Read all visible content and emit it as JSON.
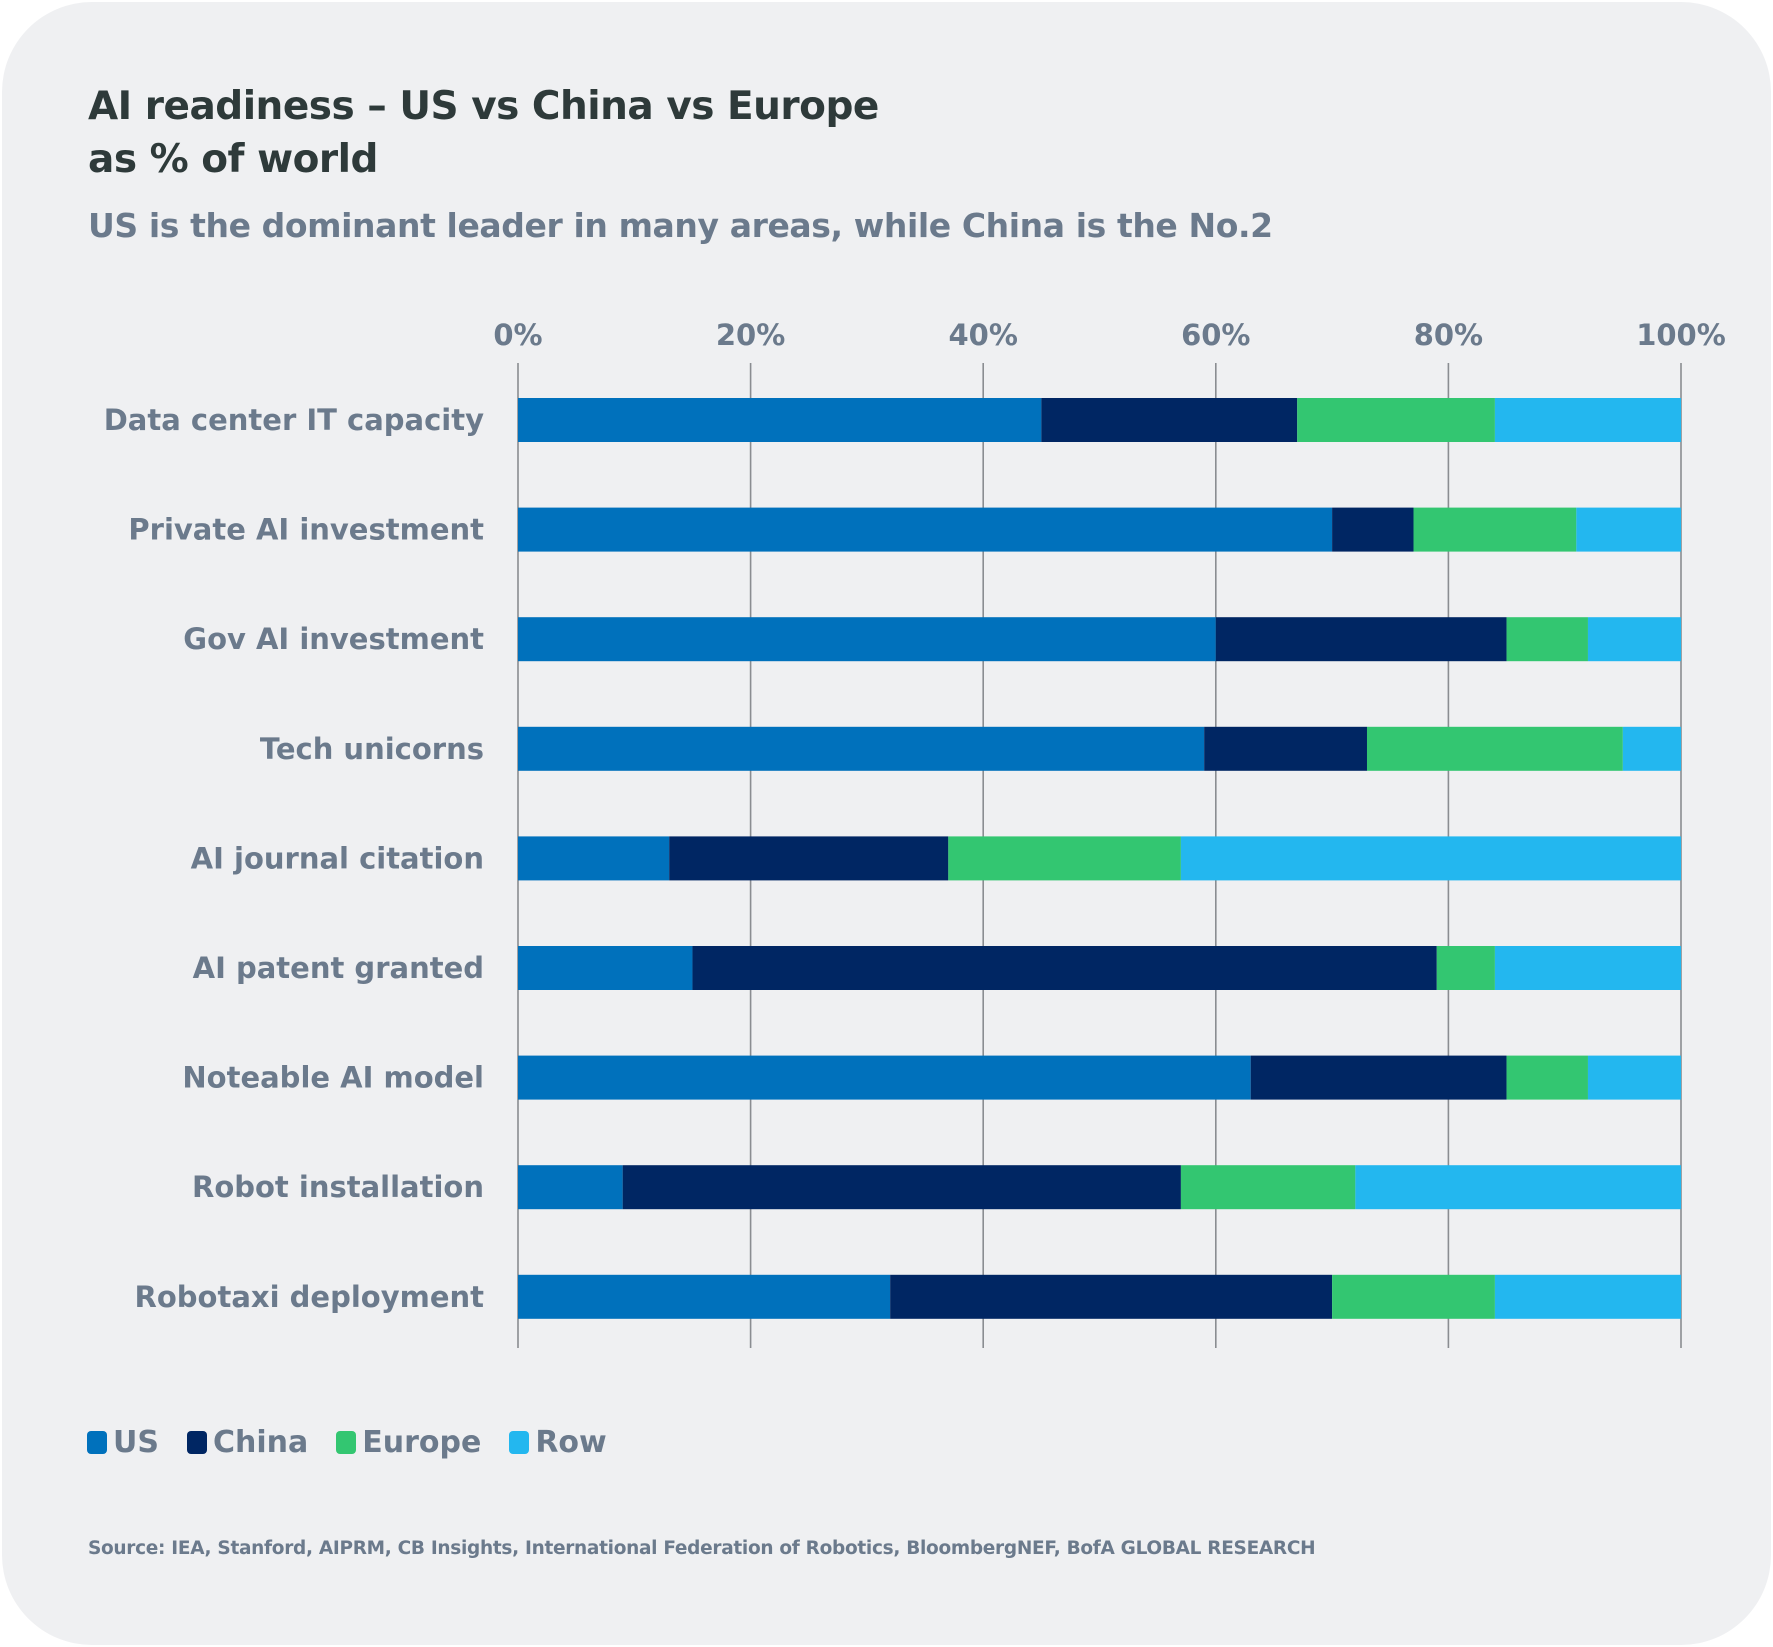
{
  "header": {
    "title_line1": "AI readiness – US vs China vs Europe",
    "title_line2": "as % of world",
    "subtitle": "US is the dominant leader in many areas, while China is the No.2"
  },
  "legend": [
    {
      "name": "US",
      "color": "#0071bc"
    },
    {
      "name": "China",
      "color": "#002663"
    },
    {
      "name": "Europe",
      "color": "#33c671"
    },
    {
      "name": "Row",
      "color": "#23b7ef"
    }
  ],
  "source": "Source: IEA, Stanford, AIPRM, CB Insights, International Federation of Robotics, BloombergNEF, BofA GLOBAL RESEARCH",
  "chart_data": {
    "type": "bar",
    "orientation": "horizontal",
    "stacked": true,
    "title": "AI readiness – US vs China vs Europe as % of world",
    "subtitle": "US is the dominant leader in many areas, while China is the No.2",
    "xlabel": "",
    "ylabel": "",
    "xlim": [
      0,
      100
    ],
    "x_ticks": [
      "0%",
      "20%",
      "40%",
      "60%",
      "80%",
      "100%"
    ],
    "x_tick_values": [
      0,
      20,
      40,
      60,
      80,
      100
    ],
    "x_axis_position": "top",
    "grid": true,
    "legend_position": "bottom-left",
    "categories": [
      "Data center IT capacity",
      "Private AI investment",
      "Gov AI investment",
      "Tech unicorns",
      "AI journal citation",
      "AI patent granted",
      "Noteable AI model",
      "Robot installation",
      "Robotaxi deployment"
    ],
    "series": [
      {
        "name": "US",
        "color": "#0071bc",
        "values": [
          45,
          70,
          60,
          59,
          13,
          15,
          63,
          9,
          32
        ]
      },
      {
        "name": "China",
        "color": "#002663",
        "values": [
          22,
          7,
          25,
          14,
          24,
          64,
          22,
          48,
          38
        ]
      },
      {
        "name": "Europe",
        "color": "#33c671",
        "values": [
          17,
          14,
          7,
          22,
          20,
          5,
          7,
          15,
          14
        ]
      },
      {
        "name": "Row",
        "color": "#23b7ef",
        "values": [
          16,
          9,
          8,
          5,
          43,
          16,
          8,
          28,
          16
        ]
      }
    ]
  }
}
